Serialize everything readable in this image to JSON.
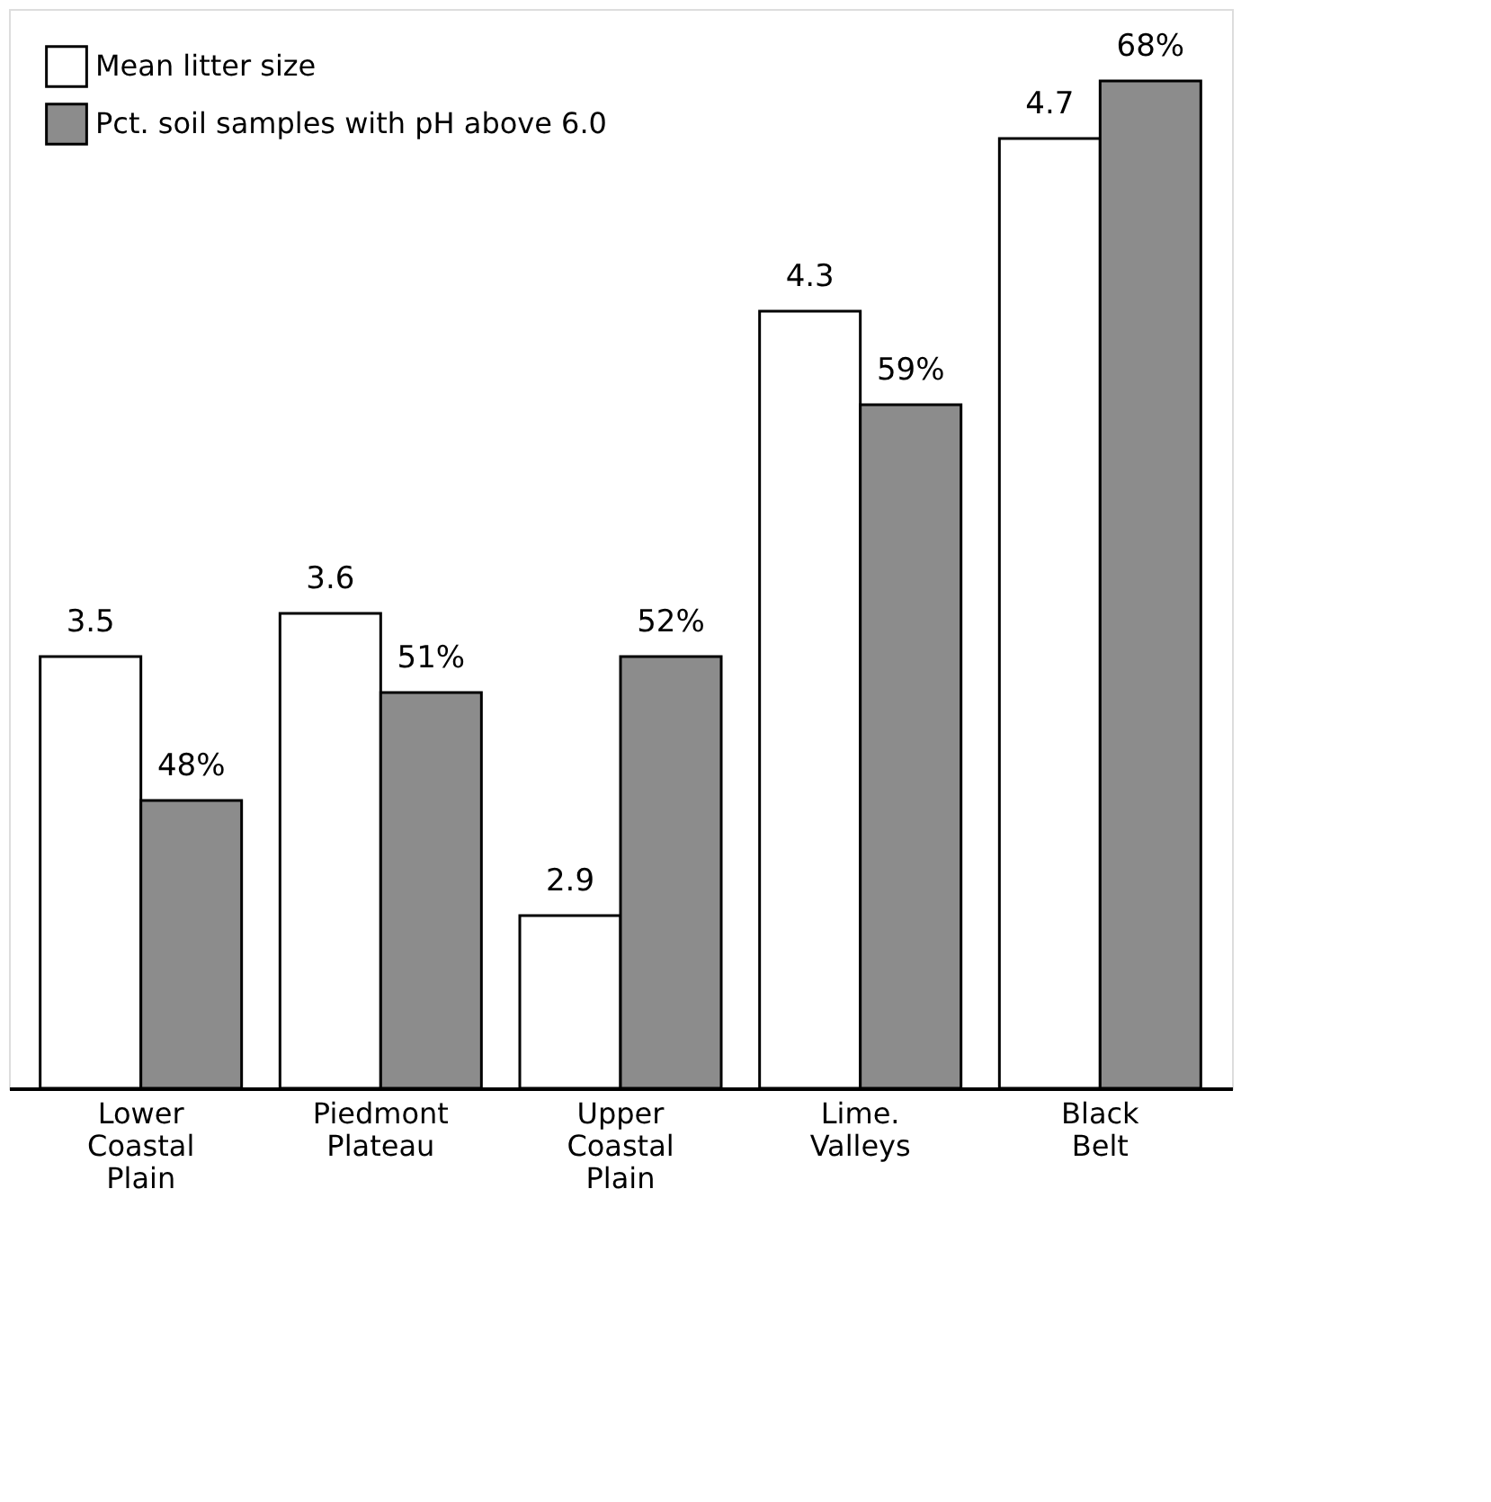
{
  "chart_data": {
    "type": "bar",
    "categories": [
      "Lower Coastal Plain",
      "Piedmont Plateau",
      "Upper Coastal Plain",
      "Lime. Valleys",
      "Black Belt"
    ],
    "series": [
      {
        "name": "Mean litter size",
        "color": "#ffffff",
        "values": [
          3.5,
          3.6,
          2.9,
          4.3,
          4.7
        ],
        "value_labels": [
          "3.5",
          "3.6",
          "2.9",
          "4.3",
          "4.7"
        ]
      },
      {
        "name": "Pct. soil samples with pH above 6.0",
        "color": "#8c8c8c",
        "axis": "y2",
        "values": [
          48,
          51,
          52,
          59,
          68
        ],
        "value_labels": [
          "48%",
          "51%",
          "52%",
          "59%",
          "68%"
        ]
      }
    ],
    "ylim": [
      2.5,
      5.0
    ],
    "y2lim": [
      40,
      70
    ],
    "legend": "top left",
    "tick_labels": "x"
  }
}
